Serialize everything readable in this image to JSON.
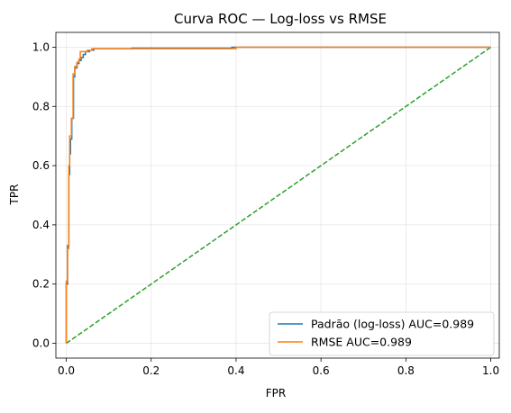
{
  "chart_data": {
    "type": "line",
    "title": "Curva ROC — Log-loss vs RMSE",
    "xlabel": "FPR",
    "ylabel": "TPR",
    "xlim": [
      -0.0245,
      1.02
    ],
    "ylim": [
      -0.05,
      1.05
    ],
    "xticks": [
      0.0,
      0.2,
      0.4,
      0.6,
      0.8,
      1.0
    ],
    "yticks": [
      0.0,
      0.2,
      0.4,
      0.6,
      0.8,
      1.0
    ],
    "xtick_labels": [
      "0.0",
      "0.2",
      "0.4",
      "0.6",
      "0.8",
      "1.0"
    ],
    "ytick_labels": [
      "0.0",
      "0.2",
      "0.4",
      "0.6",
      "0.8",
      "1.0"
    ],
    "grid": true,
    "legend_position": "lower-right",
    "series": [
      {
        "name": "Padrão (log-loss) AUC=0.989",
        "color": "#1f77b4",
        "style": "solid",
        "points": [
          [
            0.0,
            0.0
          ],
          [
            0.0,
            0.2
          ],
          [
            0.003,
            0.2
          ],
          [
            0.003,
            0.33
          ],
          [
            0.006,
            0.33
          ],
          [
            0.006,
            0.57
          ],
          [
            0.008,
            0.57
          ],
          [
            0.008,
            0.64
          ],
          [
            0.01,
            0.64
          ],
          [
            0.01,
            0.69
          ],
          [
            0.013,
            0.69
          ],
          [
            0.013,
            0.76
          ],
          [
            0.017,
            0.76
          ],
          [
            0.017,
            0.9
          ],
          [
            0.02,
            0.9
          ],
          [
            0.02,
            0.93
          ],
          [
            0.025,
            0.93
          ],
          [
            0.025,
            0.945
          ],
          [
            0.03,
            0.945
          ],
          [
            0.03,
            0.955
          ],
          [
            0.035,
            0.955
          ],
          [
            0.035,
            0.965
          ],
          [
            0.04,
            0.965
          ],
          [
            0.04,
            0.975
          ],
          [
            0.045,
            0.975
          ],
          [
            0.045,
            0.985
          ],
          [
            0.055,
            0.985
          ],
          [
            0.055,
            0.99
          ],
          [
            0.065,
            0.99
          ],
          [
            0.065,
            0.995
          ],
          [
            0.155,
            0.995
          ],
          [
            0.155,
            0.997
          ],
          [
            0.39,
            0.997
          ],
          [
            0.39,
            1.0
          ],
          [
            1.0,
            1.0
          ]
        ]
      },
      {
        "name": "RMSE AUC=0.989",
        "color": "#ff7f0e",
        "style": "solid",
        "points": [
          [
            0.0,
            0.0
          ],
          [
            0.0,
            0.21
          ],
          [
            0.003,
            0.21
          ],
          [
            0.003,
            0.32
          ],
          [
            0.006,
            0.32
          ],
          [
            0.006,
            0.6
          ],
          [
            0.008,
            0.6
          ],
          [
            0.008,
            0.7
          ],
          [
            0.012,
            0.7
          ],
          [
            0.012,
            0.76
          ],
          [
            0.016,
            0.76
          ],
          [
            0.016,
            0.91
          ],
          [
            0.02,
            0.91
          ],
          [
            0.02,
            0.935
          ],
          [
            0.026,
            0.935
          ],
          [
            0.026,
            0.95
          ],
          [
            0.03,
            0.95
          ],
          [
            0.03,
            0.96
          ],
          [
            0.033,
            0.96
          ],
          [
            0.033,
            0.985
          ],
          [
            0.05,
            0.985
          ],
          [
            0.05,
            0.99
          ],
          [
            0.06,
            0.99
          ],
          [
            0.06,
            0.995
          ],
          [
            0.4,
            0.995
          ],
          [
            0.4,
            1.0
          ],
          [
            1.0,
            1.0
          ]
        ]
      },
      {
        "name": "",
        "color": "#2ca02c",
        "style": "dashed",
        "points": [
          [
            0.0,
            0.0
          ],
          [
            1.0,
            1.0
          ]
        ]
      }
    ]
  }
}
